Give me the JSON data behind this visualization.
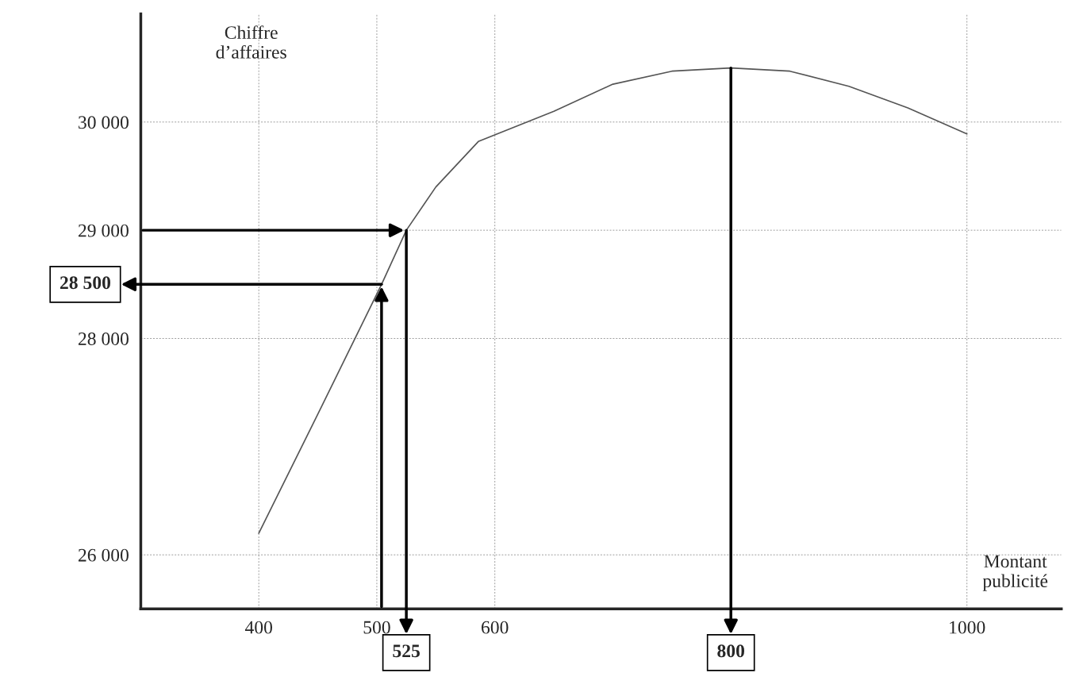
{
  "chart_data": {
    "type": "line",
    "xlabel": "Montant\npublicité",
    "ylabel": "Chiffre\nd’affaires",
    "x": [
      400,
      450,
      504,
      525,
      550,
      586,
      650,
      700,
      750,
      800,
      850,
      900,
      950,
      1000
    ],
    "series": [
      {
        "color": "#555555",
        "values": [
          26200,
          27300,
          28500,
          29000,
          29400,
          29820,
          30100,
          30350,
          30470,
          30500,
          30470,
          30330,
          30130,
          29890
        ]
      }
    ],
    "xlim": [
      300,
      1080
    ],
    "ylim": [
      25500,
      31000
    ],
    "xticks": [
      400,
      500,
      600,
      1000
    ],
    "yticks": [
      {
        "value": 26000,
        "label": "26 000"
      },
      {
        "value": 28000,
        "label": "28 000"
      },
      {
        "value": 29000,
        "label": "29 000"
      },
      {
        "value": 30000,
        "label": "30 000"
      }
    ],
    "grid": true,
    "annotations": [
      {
        "text": "28 500",
        "x": 504,
        "y": 28500
      },
      {
        "text": "525",
        "x": 525,
        "y": 29000
      },
      {
        "text": "800",
        "x": 800,
        "y": 30500
      }
    ]
  }
}
